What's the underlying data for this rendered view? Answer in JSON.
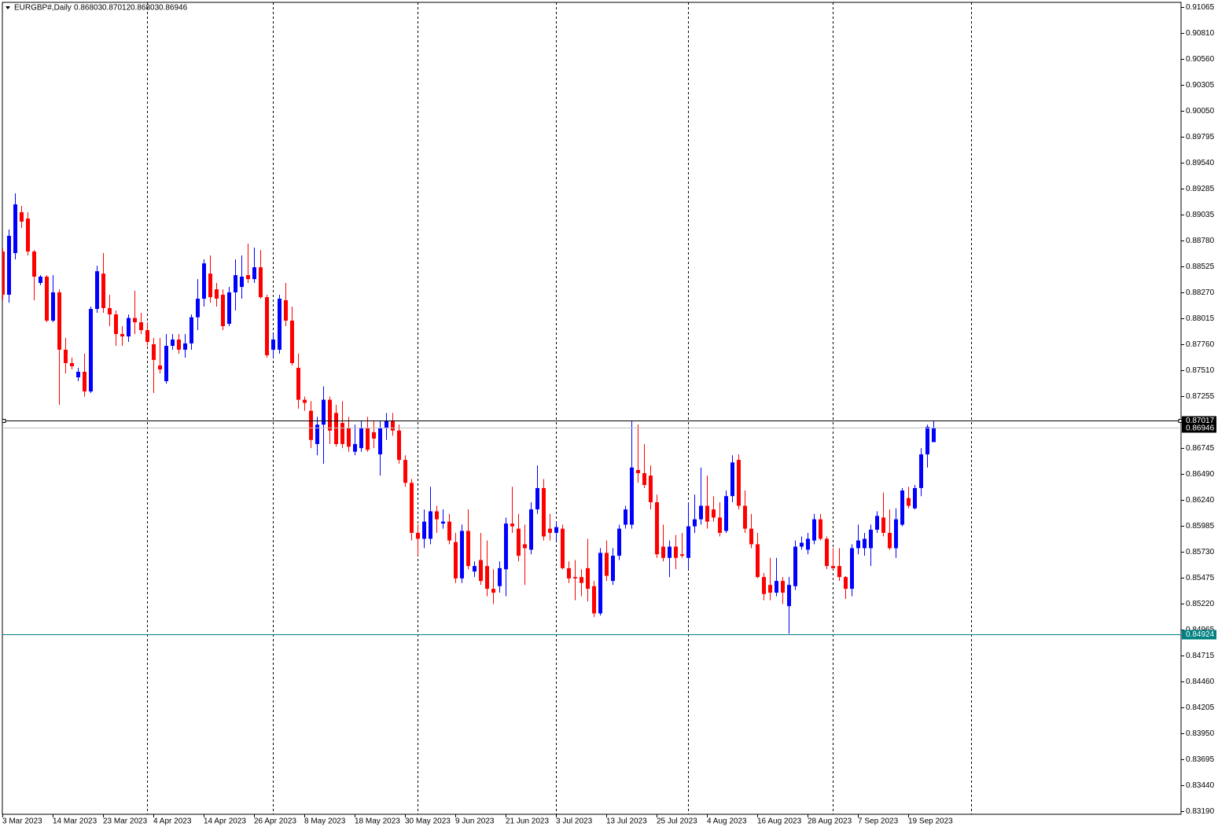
{
  "chart_data": {
    "type": "candlestick",
    "title": "EURGBP#,Daily",
    "up_color": "#0000ff",
    "down_color": "#ff0000",
    "ylim": [
      0.83157,
      0.91111
    ],
    "yticks": [
      0.91065,
      {
        "value": 0.9081,
        "label": "0.90810"
      },
      {
        "value": 0.9056,
        "label": "0.90560"
      },
      0.90305,
      {
        "value": 0.9005,
        "label": "0.90050"
      },
      0.89795,
      {
        "value": 0.8954,
        "label": "0.89540"
      },
      0.89285,
      0.89035,
      {
        "value": 0.8878,
        "label": "0.88780"
      },
      0.88525,
      {
        "value": 0.8827,
        "label": "0.88270"
      },
      0.88015,
      {
        "value": 0.8776,
        "label": "0.87760"
      },
      {
        "value": 0.8751,
        "label": "0.87510"
      },
      0.87255,
      0.86745,
      {
        "value": 0.8649,
        "label": "0.86490"
      },
      {
        "value": 0.8624,
        "label": "0.86240"
      },
      0.85985,
      {
        "value": 0.8573,
        "label": "0.85730"
      },
      0.85475,
      {
        "value": 0.8522,
        "label": "0.85220"
      },
      0.84965,
      0.84715,
      {
        "value": 0.8446,
        "label": "0.84460"
      },
      0.84205,
      {
        "value": 0.8395,
        "label": "0.83950"
      },
      0.83695,
      {
        "value": 0.8344,
        "label": "0.83440"
      },
      {
        "value": 0.8319,
        "label": "0.83190"
      }
    ],
    "hlines": [
      {
        "value": 0.87017,
        "color": "#000000"
      },
      {
        "value": 0.84924,
        "color": "#008080"
      }
    ],
    "categories": [
      "3 Mar 2023",
      null,
      null,
      null,
      null,
      null,
      null,
      null,
      "14 Mar 2023",
      null,
      null,
      null,
      null,
      null,
      null,
      null,
      "23 Mar 2023",
      null,
      null,
      null,
      null,
      null,
      null,
      null,
      "4 Apr 2023",
      null,
      null,
      null,
      null,
      null,
      null,
      null,
      "14 Apr 2023",
      null,
      null,
      null,
      null,
      null,
      null,
      null,
      "26 Apr 2023",
      null,
      null,
      null,
      null,
      null,
      null,
      null,
      "8 May 2023",
      null,
      null,
      null,
      null,
      null,
      null,
      null,
      "18 May 2023",
      null,
      null,
      null,
      null,
      null,
      null,
      null,
      "30 May 2023",
      null,
      null,
      null,
      null,
      null,
      null,
      null,
      "9 Jun 2023",
      null,
      null,
      null,
      null,
      null,
      null,
      null,
      "21 Jun 2023",
      null,
      null,
      null,
      null,
      null,
      null,
      null,
      "3 Jul 2023",
      null,
      null,
      null,
      null,
      null,
      null,
      null,
      "13 Jul 2023",
      null,
      null,
      null,
      null,
      null,
      null,
      null,
      "25 Jul 2023",
      null,
      null,
      null,
      null,
      null,
      null,
      null,
      "4 Aug 2023",
      null,
      null,
      null,
      null,
      null,
      null,
      null,
      "16 Aug 2023",
      null,
      null,
      null,
      null,
      null,
      null,
      null,
      "28 Aug 2023",
      null,
      null,
      null,
      null,
      null,
      null,
      null,
      "7 Sep 2023",
      null,
      null,
      null,
      null,
      null,
      null,
      null,
      "19 Sep 2023",
      null,
      null,
      null,
      null
    ],
    "candles": [
      [
        0.8867,
        0.88701,
        0.88193,
        0.88247
      ],
      [
        0.88247,
        0.88886,
        0.88169,
        0.88824
      ],
      [
        0.88655,
        0.8924,
        0.88593,
        0.89132
      ],
      [
        0.89055,
        0.89117,
        0.88901,
        0.88963
      ],
      [
        0.88993,
        0.89055,
        0.88632,
        0.8867
      ],
      [
        0.8867,
        0.88685,
        0.88193,
        0.88424
      ],
      [
        0.88362,
        0.88439,
        0.8834,
        0.88424
      ],
      [
        0.88424,
        0.88439,
        0.87977,
        0.87993
      ],
      [
        0.87993,
        0.88439,
        0.87977,
        0.8827
      ],
      [
        0.8827,
        0.883,
        0.87169,
        0.87708
      ],
      [
        0.87708,
        0.87824,
        0.87477,
        0.87577
      ],
      [
        0.87577,
        0.87631,
        0.87515,
        0.87546
      ],
      [
        0.87438,
        0.87531,
        0.874,
        0.87492
      ],
      [
        0.87492,
        0.87669,
        0.87249,
        0.87299
      ],
      [
        0.87299,
        0.88131,
        0.87284,
        0.88108
      ],
      [
        0.88108,
        0.88531,
        0.8807,
        0.88477
      ],
      [
        0.88454,
        0.88655,
        0.8807,
        0.88116
      ],
      [
        0.88116,
        0.88247,
        0.87939,
        0.88054
      ],
      [
        0.88054,
        0.88093,
        0.87746,
        0.87862
      ],
      [
        0.87862,
        0.87939,
        0.87746,
        0.87838
      ],
      [
        0.87838,
        0.88054,
        0.87785,
        0.88019
      ],
      [
        0.88019,
        0.88285,
        0.87862,
        0.87977
      ],
      [
        0.87977,
        0.8807,
        0.87862,
        0.879
      ],
      [
        0.879,
        0.87977,
        0.87746,
        0.87785
      ],
      [
        0.87762,
        0.87824,
        0.87284,
        0.87608
      ],
      [
        0.87554,
        0.87824,
        0.87477,
        0.87515
      ],
      [
        0.874,
        0.87862,
        0.87376,
        0.87746
      ],
      [
        0.87746,
        0.87862,
        0.87708,
        0.87808
      ],
      [
        0.87808,
        0.87862,
        0.87669,
        0.87708
      ],
      [
        0.87708,
        0.87862,
        0.87631,
        0.8777
      ],
      [
        0.8777,
        0.88054,
        0.87708,
        0.88026
      ],
      [
        0.88026,
        0.884,
        0.879,
        0.88208
      ],
      [
        0.88208,
        0.88593,
        0.88131,
        0.88554
      ],
      [
        0.88454,
        0.88632,
        0.88169,
        0.88223
      ],
      [
        0.883,
        0.88362,
        0.88131,
        0.88208
      ],
      [
        0.88247,
        0.883,
        0.879,
        0.87939
      ],
      [
        0.87962,
        0.88323,
        0.87939,
        0.8827
      ],
      [
        0.8827,
        0.88593,
        0.88093,
        0.88439
      ],
      [
        0.88323,
        0.88632,
        0.88208,
        0.88424
      ],
      [
        0.88439,
        0.88747,
        0.88362,
        0.884
      ],
      [
        0.884,
        0.88709,
        0.88362,
        0.88516
      ],
      [
        0.88516,
        0.88685,
        0.88208,
        0.88223
      ],
      [
        0.88223,
        0.88247,
        0.87631,
        0.87654
      ],
      [
        0.87708,
        0.87862,
        0.87631,
        0.87808
      ],
      [
        0.87708,
        0.88247,
        0.87669,
        0.88208
      ],
      [
        0.88193,
        0.88362,
        0.87939,
        0.87993
      ],
      [
        0.87993,
        0.88131,
        0.87554,
        0.87577
      ],
      [
        0.87531,
        0.87669,
        0.8713,
        0.87218
      ],
      [
        0.87218,
        0.87249,
        0.8711,
        0.87188
      ],
      [
        0.8711,
        0.87204,
        0.86744,
        0.86824
      ],
      [
        0.86784,
        0.8705,
        0.86674,
        0.86974
      ],
      [
        0.86974,
        0.8735,
        0.86591,
        0.87218
      ],
      [
        0.87218,
        0.87249,
        0.86784,
        0.86916
      ],
      [
        0.87089,
        0.87169,
        0.86758,
        0.86784
      ],
      [
        0.86991,
        0.87204,
        0.86744,
        0.86784
      ],
      [
        0.86937,
        0.8705,
        0.86709,
        0.86758
      ],
      [
        0.86709,
        0.86974,
        0.86674,
        0.86784
      ],
      [
        0.86744,
        0.87012,
        0.86709,
        0.86937
      ],
      [
        0.86937,
        0.8705,
        0.86709,
        0.86728
      ],
      [
        0.869,
        0.87012,
        0.86744,
        0.86838
      ],
      [
        0.86683,
        0.87012,
        0.86475,
        0.86937
      ],
      [
        0.86937,
        0.87089,
        0.86824,
        0.87012
      ],
      [
        0.87012,
        0.87089,
        0.86865,
        0.86916
      ],
      [
        0.86916,
        0.86974,
        0.86591,
        0.86629
      ],
      [
        0.86629,
        0.86674,
        0.86366,
        0.86404
      ],
      [
        0.86404,
        0.86441,
        0.85839,
        0.85914
      ],
      [
        0.85914,
        0.85994,
        0.8569,
        0.85856
      ],
      [
        0.85856,
        0.86144,
        0.85764,
        0.86024
      ],
      [
        0.85856,
        0.86366,
        0.85802,
        0.86125
      ],
      [
        0.86125,
        0.86179,
        0.85914,
        0.86047
      ],
      [
        0.86005,
        0.86144,
        0.85955,
        0.86024
      ],
      [
        0.86024,
        0.86099,
        0.85802,
        0.85839
      ],
      [
        0.85824,
        0.85914,
        0.85423,
        0.85468
      ],
      [
        0.85468,
        0.85994,
        0.85423,
        0.85933
      ],
      [
        0.85933,
        0.86144,
        0.85557,
        0.85589
      ],
      [
        0.85535,
        0.85634,
        0.85481,
        0.85589
      ],
      [
        0.85648,
        0.85914,
        0.85404,
        0.85443
      ],
      [
        0.85589,
        0.85839,
        0.85293,
        0.85366
      ],
      [
        0.85366,
        0.85557,
        0.85218,
        0.85328
      ],
      [
        0.85392,
        0.85634,
        0.85328,
        0.85568
      ],
      [
        0.85557,
        0.86064,
        0.85293,
        0.86005
      ],
      [
        0.86005,
        0.86366,
        0.85914,
        0.85978
      ],
      [
        0.85955,
        0.86099,
        0.85634,
        0.8569
      ],
      [
        0.85802,
        0.85994,
        0.85404,
        0.85764
      ],
      [
        0.85749,
        0.86214,
        0.85704,
        0.86144
      ],
      [
        0.86144,
        0.86575,
        0.86099,
        0.86353
      ],
      [
        0.86353,
        0.86441,
        0.85839,
        0.85879
      ],
      [
        0.85955,
        0.86099,
        0.85839,
        0.85914
      ],
      [
        0.85914,
        0.86024,
        0.85839,
        0.8597
      ],
      [
        0.85955,
        0.85994,
        0.85557,
        0.85568
      ],
      [
        0.85568,
        0.85634,
        0.85423,
        0.85468
      ],
      [
        0.85481,
        0.85648,
        0.85254,
        0.85468
      ],
      [
        0.85481,
        0.85557,
        0.85293,
        0.85423
      ],
      [
        0.85568,
        0.85856,
        0.85242,
        0.85366
      ],
      [
        0.85392,
        0.85443,
        0.85089,
        0.85125
      ],
      [
        0.85125,
        0.85764,
        0.85104,
        0.85718
      ],
      [
        0.85718,
        0.85839,
        0.85443,
        0.85493
      ],
      [
        0.85443,
        0.85764,
        0.85404,
        0.8569
      ],
      [
        0.8569,
        0.85994,
        0.85648,
        0.85955
      ],
      [
        0.85994,
        0.86179,
        0.85955,
        0.86144
      ],
      [
        0.85994,
        0.87012,
        0.85955,
        0.86554
      ],
      [
        0.8653,
        0.86974,
        0.86404,
        0.86499
      ],
      [
        0.86499,
        0.86784,
        0.86353,
        0.86383
      ],
      [
        0.86475,
        0.86575,
        0.86144,
        0.86214
      ],
      [
        0.86214,
        0.86289,
        0.85669,
        0.85704
      ],
      [
        0.85779,
        0.85994,
        0.85634,
        0.85669
      ],
      [
        0.85669,
        0.85839,
        0.85481,
        0.85779
      ],
      [
        0.85779,
        0.85893,
        0.85557,
        0.85669
      ],
      [
        0.85704,
        0.85914,
        0.85669,
        0.8569
      ],
      [
        0.85669,
        0.86214,
        0.85557,
        0.85978
      ],
      [
        0.85978,
        0.86289,
        0.85914,
        0.86047
      ],
      [
        0.86047,
        0.86554,
        0.85994,
        0.86179
      ],
      [
        0.86179,
        0.86475,
        0.85955,
        0.86024
      ],
      [
        0.86144,
        0.86274,
        0.86024,
        0.86064
      ],
      [
        0.86064,
        0.86214,
        0.85879,
        0.85914
      ],
      [
        0.85933,
        0.86329,
        0.85914,
        0.86274
      ],
      [
        0.86274,
        0.86674,
        0.86214,
        0.86604
      ],
      [
        0.86629,
        0.86683,
        0.86144,
        0.86179
      ],
      [
        0.86179,
        0.86329,
        0.85914,
        0.85955
      ],
      [
        0.85955,
        0.86099,
        0.85764,
        0.85802
      ],
      [
        0.85802,
        0.85914,
        0.85468,
        0.85481
      ],
      [
        0.85481,
        0.8552,
        0.85254,
        0.85315
      ],
      [
        0.85404,
        0.85669,
        0.85254,
        0.85328
      ],
      [
        0.85328,
        0.85669,
        0.85293,
        0.85443
      ],
      [
        0.85443,
        0.85481,
        0.85218,
        0.85328
      ],
      [
        0.85196,
        0.85481,
        0.84926,
        0.85404
      ],
      [
        0.85392,
        0.85839,
        0.85353,
        0.85779
      ],
      [
        0.85779,
        0.85879,
        0.85749,
        0.85817
      ],
      [
        0.85749,
        0.85914,
        0.85704,
        0.85856
      ],
      [
        0.85839,
        0.86099,
        0.85802,
        0.86047
      ],
      [
        0.86047,
        0.86099,
        0.85839,
        0.85856
      ],
      [
        0.85856,
        0.85879,
        0.85557,
        0.85589
      ],
      [
        0.85589,
        0.85764,
        0.85557,
        0.85568
      ],
      [
        0.85589,
        0.85764,
        0.85443,
        0.85481
      ],
      [
        0.85481,
        0.85491,
        0.85266,
        0.85366
      ],
      [
        0.85366,
        0.85802,
        0.85293,
        0.85764
      ],
      [
        0.85764,
        0.85994,
        0.85704,
        0.85839
      ],
      [
        0.85764,
        0.85914,
        0.8569,
        0.85856
      ],
      [
        0.85764,
        0.85994,
        0.85589,
        0.85945
      ],
      [
        0.85945,
        0.86125,
        0.85914,
        0.8608
      ],
      [
        0.86064,
        0.86309,
        0.85879,
        0.85914
      ],
      [
        0.85914,
        0.86144,
        0.85749,
        0.85764
      ],
      [
        0.85764,
        0.86154,
        0.85669,
        0.86047
      ],
      [
        0.85994,
        0.86353,
        0.85978,
        0.86329
      ],
      [
        0.86255,
        0.86366,
        0.86154,
        0.86179
      ],
      [
        0.86154,
        0.86383,
        0.86144,
        0.86353
      ],
      [
        0.86353,
        0.86744,
        0.86274,
        0.86683
      ],
      [
        0.86683,
        0.86974,
        0.86554,
        0.86953
      ],
      [
        0.86803,
        0.87012,
        0.86803,
        0.86946
      ]
    ]
  }
}
